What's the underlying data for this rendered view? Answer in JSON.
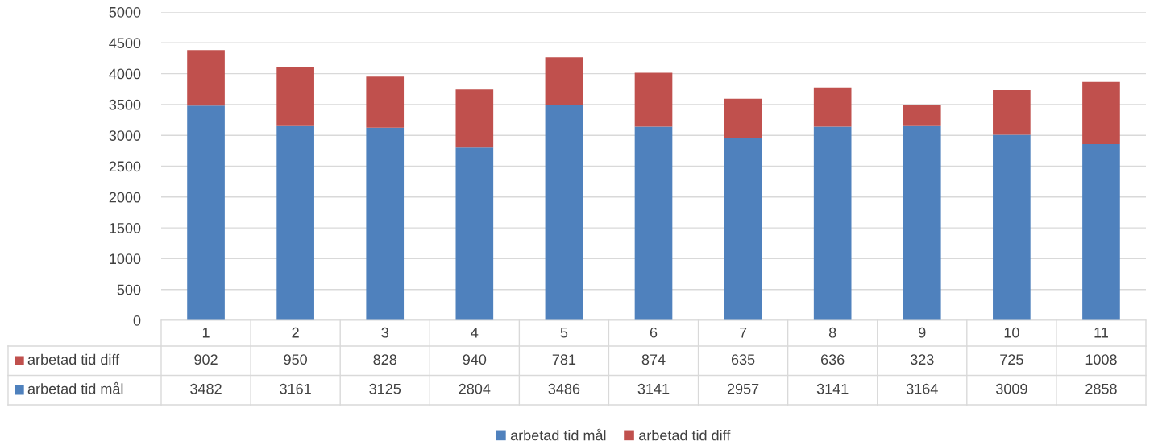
{
  "chart_data": {
    "type": "bar",
    "stacked": true,
    "categories": [
      "1",
      "2",
      "3",
      "4",
      "5",
      "6",
      "7",
      "8",
      "9",
      "10",
      "11"
    ],
    "series": [
      {
        "name": "arbetad tid mål",
        "color": "#4f81bd",
        "values": [
          3482,
          3161,
          3125,
          2804,
          3486,
          3141,
          2957,
          3141,
          3164,
          3009,
          2858
        ]
      },
      {
        "name": "arbetad tid diff",
        "color": "#c0504d",
        "values": [
          902,
          950,
          828,
          940,
          781,
          874,
          635,
          636,
          323,
          725,
          1008
        ]
      }
    ],
    "ylim": [
      0,
      5000
    ],
    "yticks": [
      0,
      500,
      1000,
      1500,
      2000,
      2500,
      3000,
      3500,
      4000,
      4500,
      5000
    ],
    "grid": "y",
    "legend": "bottom",
    "data_labels": true
  }
}
